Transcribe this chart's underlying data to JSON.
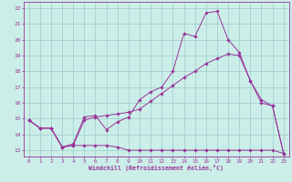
{
  "xlabel": "Windchill (Refroidissement éolien,°C)",
  "background_color": "#cceee8",
  "grid_color": "#99cccc",
  "line_color": "#993399",
  "spine_color": "#993399",
  "xlim": [
    -0.5,
    23.5
  ],
  "ylim": [
    12.6,
    22.4
  ],
  "yticks": [
    13,
    14,
    15,
    16,
    17,
    18,
    19,
    20,
    21,
    22
  ],
  "xticks": [
    0,
    1,
    2,
    3,
    4,
    5,
    6,
    7,
    8,
    9,
    10,
    11,
    12,
    13,
    14,
    15,
    16,
    17,
    18,
    19,
    20,
    21,
    22,
    23
  ],
  "line1_x": [
    0,
    1,
    2,
    3,
    4,
    5,
    6,
    7,
    8,
    9,
    10,
    11,
    12,
    13,
    14,
    15,
    16,
    17,
    18,
    19,
    20,
    21,
    22,
    23
  ],
  "line1_y": [
    14.9,
    14.4,
    14.4,
    13.2,
    13.3,
    13.3,
    13.3,
    13.3,
    13.2,
    13.0,
    13.0,
    13.0,
    13.0,
    13.0,
    13.0,
    13.0,
    13.0,
    13.0,
    13.0,
    13.0,
    13.0,
    13.0,
    13.0,
    12.8
  ],
  "line2_x": [
    0,
    1,
    2,
    3,
    4,
    5,
    6,
    7,
    8,
    9,
    10,
    11,
    12,
    13,
    14,
    15,
    16,
    17,
    18,
    19,
    20,
    21,
    22,
    23
  ],
  "line2_y": [
    14.9,
    14.4,
    14.4,
    13.2,
    13.3,
    14.9,
    15.1,
    15.2,
    15.3,
    15.4,
    15.6,
    16.1,
    16.6,
    17.1,
    17.6,
    18.0,
    18.5,
    18.8,
    19.1,
    19.0,
    17.4,
    16.2,
    15.8,
    12.8
  ],
  "line3_x": [
    0,
    1,
    2,
    3,
    4,
    5,
    6,
    7,
    8,
    9,
    10,
    11,
    12,
    13,
    14,
    15,
    16,
    17,
    18,
    19,
    20,
    21,
    22,
    23
  ],
  "line3_y": [
    14.9,
    14.4,
    14.4,
    13.2,
    13.4,
    15.1,
    15.2,
    14.3,
    14.8,
    15.1,
    16.2,
    16.7,
    17.0,
    18.0,
    20.4,
    20.2,
    21.7,
    21.8,
    20.0,
    19.2,
    17.4,
    16.0,
    15.8,
    12.8
  ]
}
